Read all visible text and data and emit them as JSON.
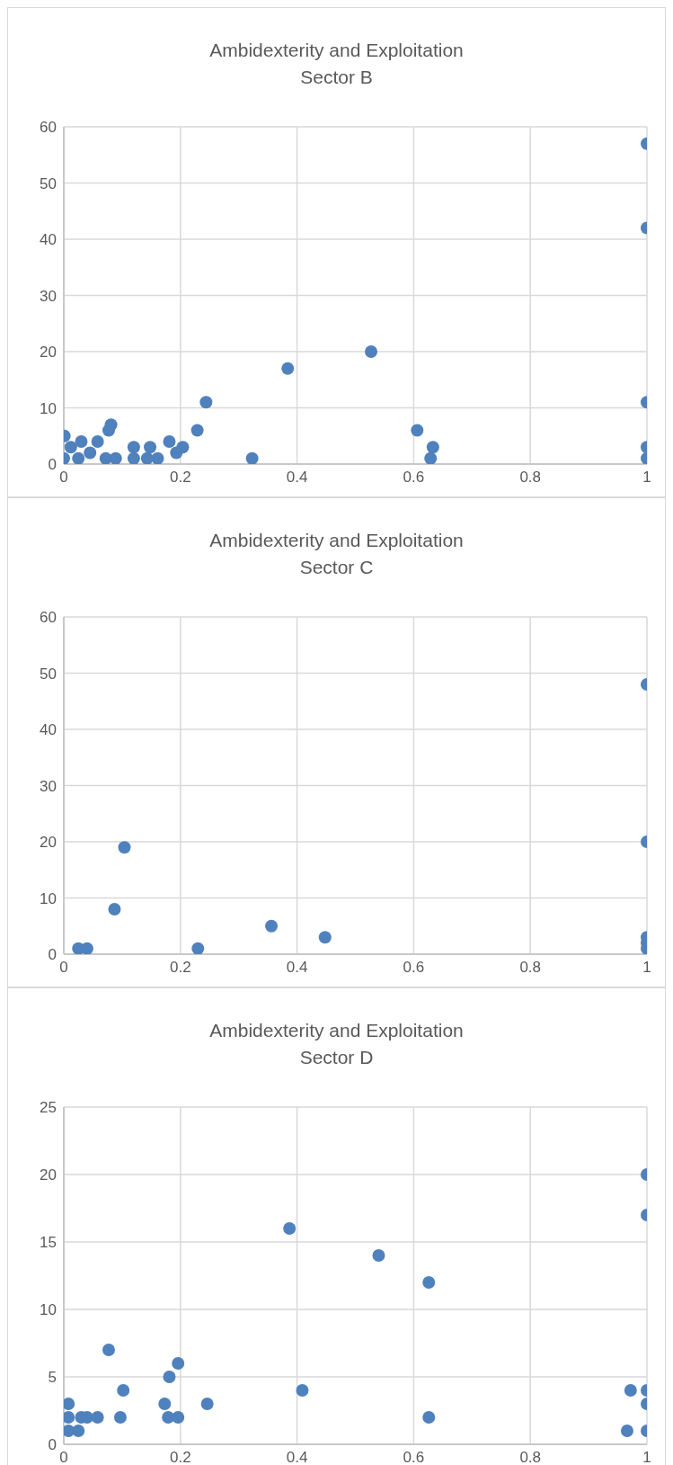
{
  "chart_data": [
    {
      "type": "scatter",
      "title": "Ambidexterity and Exploitation\nSector B",
      "marker": "circle",
      "grid": true,
      "xlim": [
        0,
        1
      ],
      "xticks": [
        0,
        0.2,
        0.4,
        0.6,
        0.8,
        1
      ],
      "ylim": [
        0,
        60
      ],
      "yticks": [
        0,
        10,
        20,
        30,
        40,
        50,
        60
      ],
      "series": [
        {
          "color": "#4f81bd",
          "x": [
            1,
            1,
            0.527,
            0.384,
            0.244,
            0.229,
            0.606,
            0.633,
            0.629,
            1,
            1,
            1,
            0.323,
            0.181,
            0.204,
            0.193,
            0.148,
            0.12,
            0.12,
            0.143,
            0.161,
            0.072,
            0.089,
            0.077,
            0.081,
            0.001,
            0.058,
            0,
            0.025,
            0.045,
            0.012,
            0.03
          ],
          "values": [
            57,
            42,
            20,
            17,
            11,
            6,
            6,
            3,
            1,
            11,
            3,
            1,
            1,
            4,
            3,
            2,
            3,
            3,
            1,
            1,
            1,
            1,
            1,
            6,
            7,
            5,
            4,
            1,
            1,
            2,
            3,
            4
          ]
        }
      ]
    },
    {
      "type": "scatter",
      "title": "Ambidexterity and Exploitation\nSector C",
      "marker": "circle",
      "grid": true,
      "xlim": [
        0,
        1
      ],
      "xticks": [
        0,
        0.2,
        0.4,
        0.6,
        0.8,
        1
      ],
      "ylim": [
        0,
        60
      ],
      "yticks": [
        0,
        10,
        20,
        30,
        40,
        50,
        60
      ],
      "series": [
        {
          "color": "#4f81bd",
          "x": [
            1,
            1,
            0.104,
            0.087,
            0.356,
            0.448,
            0.23,
            0.025,
            0.04,
            1,
            1,
            1
          ],
          "values": [
            48,
            20,
            19,
            8,
            5,
            3,
            1,
            1,
            1,
            3,
            2,
            1
          ]
        }
      ]
    },
    {
      "type": "scatter",
      "title": "Ambidexterity and Exploitation\nSector D",
      "marker": "circle",
      "grid": true,
      "xlim": [
        0,
        1
      ],
      "xticks": [
        0,
        0.2,
        0.4,
        0.6,
        0.8,
        1
      ],
      "ylim": [
        0,
        25
      ],
      "yticks": [
        0,
        5,
        10,
        15,
        20,
        25
      ],
      "series": [
        {
          "color": "#4f81bd",
          "x": [
            1,
            1,
            0.387,
            0.54,
            0.626,
            0.077,
            0.196,
            0.181,
            0.102,
            0.409,
            0.972,
            1,
            1,
            0.008,
            0.173,
            0.246,
            0.008,
            0.03,
            0.04,
            0.058,
            0.097,
            0.179,
            0.196,
            0.626,
            0.008,
            0.025,
            0.966,
            1
          ],
          "values": [
            20,
            17,
            16,
            14,
            12,
            7,
            6,
            5,
            4,
            4,
            4,
            4,
            3,
            3,
            3,
            3,
            2,
            2,
            2,
            2,
            2,
            2,
            2,
            2,
            1,
            1,
            1,
            1
          ]
        }
      ]
    }
  ]
}
